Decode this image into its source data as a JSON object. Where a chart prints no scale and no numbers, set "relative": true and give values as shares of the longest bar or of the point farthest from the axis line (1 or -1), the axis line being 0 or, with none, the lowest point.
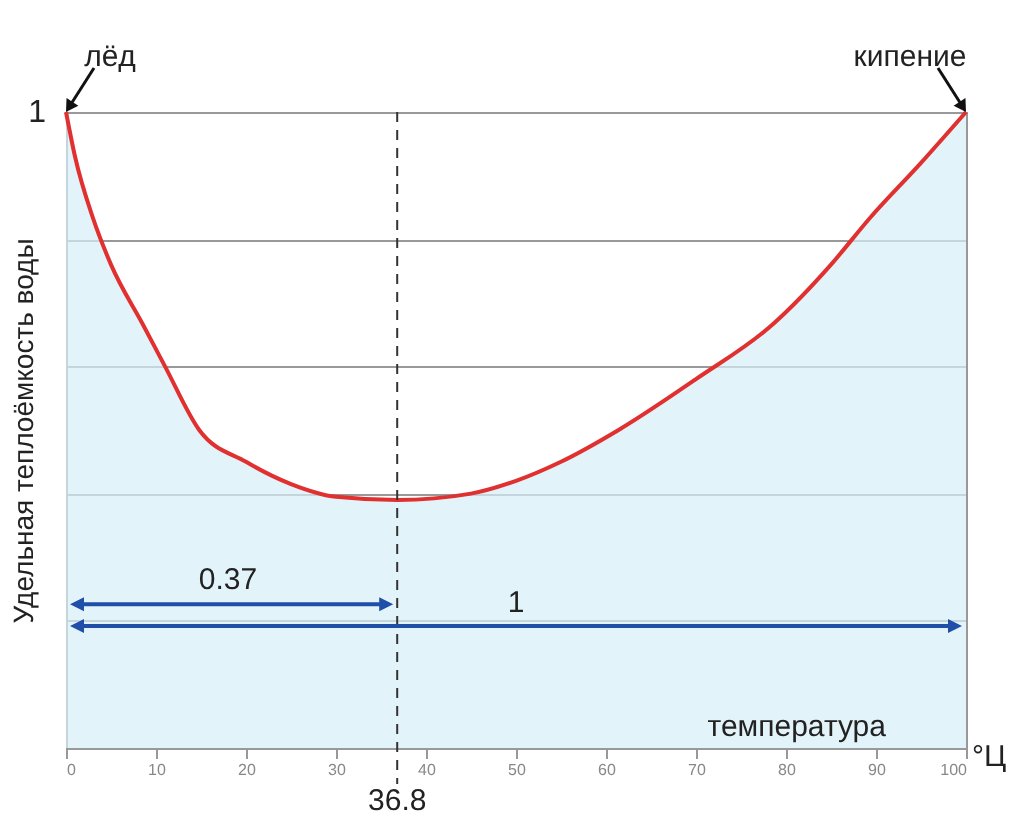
{
  "chart_data": {
    "type": "area",
    "relative": true,
    "ylabel": "Удельная теплоёмкость воды",
    "xlabel": "температура",
    "x": [
      0,
      1,
      3,
      5,
      8.5,
      11,
      14.8,
      20,
      25,
      30,
      36.8,
      45,
      50,
      55,
      61.4,
      70,
      78.6,
      85,
      89.3,
      95,
      100
    ],
    "series": [
      {
        "color": "#e03030",
        "values": [
          1,
          0.93,
          0.833,
          0.76,
          0.667,
          0.6,
          0.5,
          0.45,
          0.415,
          0.395,
          0.39,
          0.4,
          0.42,
          0.45,
          0.5,
          0.58,
          0.667,
          0.76,
          0.833,
          0.92,
          1
        ]
      }
    ],
    "xlim": [
      0,
      100
    ],
    "xticks": [
      0,
      10,
      20,
      30,
      40,
      50,
      60,
      70,
      80,
      90,
      100
    ],
    "grid": "y",
    "ref_lines": [
      {
        "axis": "x",
        "value": 36.8,
        "label": "36.8",
        "line_style": "dashed",
        "color": "#333333"
      }
    ],
    "annotations": [
      "лёд",
      "кипение",
      "1",
      "0.37",
      "1",
      "°Ц"
    ]
  }
}
